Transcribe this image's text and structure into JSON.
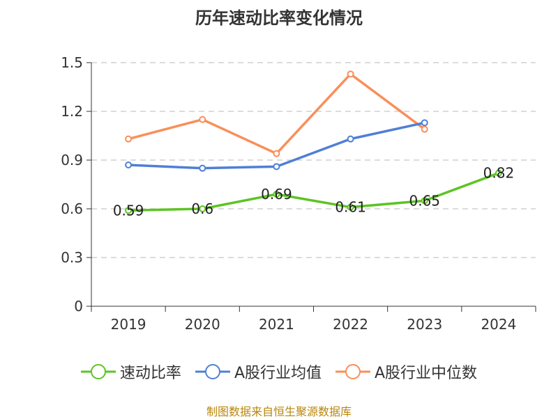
{
  "chart_data": {
    "type": "line",
    "title": "历年速动比率变化情况",
    "categories": [
      "2019",
      "2020",
      "2021",
      "2022",
      "2023",
      "2024"
    ],
    "y_ticks": [
      "0",
      "0.3",
      "0.6",
      "0.9",
      "1.2",
      "1.5"
    ],
    "ylim": [
      0,
      1.5
    ],
    "grid": true,
    "legend_position": "bottom",
    "series": [
      {
        "name": "速动比率",
        "color": "#5cc423",
        "values": [
          0.59,
          0.6,
          0.69,
          0.61,
          0.65,
          0.82
        ],
        "labels": [
          "0.59",
          "0.6",
          "0.69",
          "0.61",
          "0.65",
          "0.82"
        ]
      },
      {
        "name": "A股行业均值",
        "color": "#4f7fd6",
        "values": [
          0.87,
          0.85,
          0.86,
          1.03,
          1.13,
          null
        ]
      },
      {
        "name": "A股行业中位数",
        "color": "#f98f5a",
        "values": [
          1.03,
          1.15,
          0.94,
          1.43,
          1.09,
          null
        ]
      }
    ]
  },
  "footer": {
    "source": "制图数据来自恒生聚源数据库"
  }
}
